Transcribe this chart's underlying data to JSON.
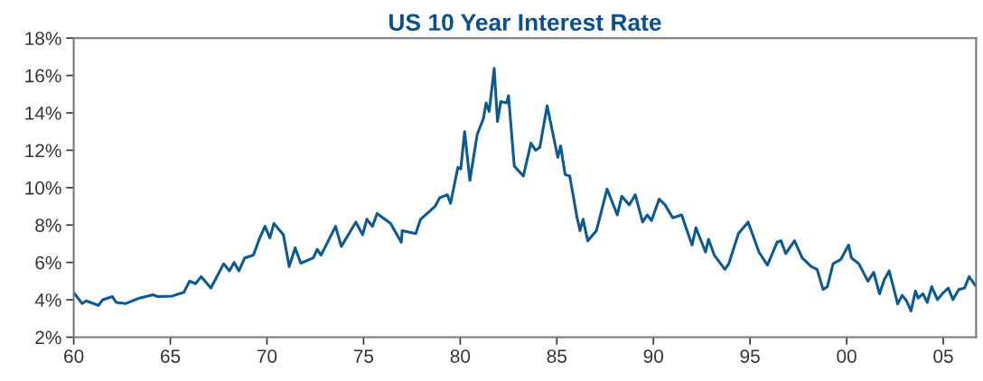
{
  "chart_data": {
    "type": "line",
    "title": "US 10 Year Interest Rate",
    "x": [
      1960.05,
      1960.43,
      1960.65,
      1961.28,
      1961.5,
      1962.0,
      1962.2,
      1962.7,
      1963.4,
      1964.1,
      1964.35,
      1965.1,
      1965.7,
      1966.0,
      1966.3,
      1966.6,
      1967.1,
      1967.76,
      1968.06,
      1968.3,
      1968.55,
      1968.85,
      1969.3,
      1969.6,
      1969.9,
      1970.15,
      1970.36,
      1970.85,
      1971.15,
      1971.46,
      1971.75,
      1972.4,
      1972.6,
      1972.8,
      1973.55,
      1973.85,
      1974.6,
      1974.95,
      1975.17,
      1975.46,
      1975.7,
      1976.4,
      1976.95,
      1977.0,
      1977.7,
      1977.95,
      1978.7,
      1978.95,
      1979.34,
      1979.5,
      1979.88,
      1980.03,
      1980.23,
      1980.5,
      1980.88,
      1981.2,
      1981.34,
      1981.5,
      1981.76,
      1981.93,
      1982.1,
      1982.4,
      1982.5,
      1982.8,
      1983.27,
      1983.66,
      1983.9,
      1984.12,
      1984.5,
      1985.05,
      1985.2,
      1985.43,
      1985.67,
      1986.05,
      1986.2,
      1986.36,
      1986.6,
      1987.05,
      1987.28,
      1987.6,
      1988.13,
      1988.36,
      1988.75,
      1989.06,
      1989.44,
      1989.68,
      1989.9,
      1990.3,
      1990.6,
      1991.0,
      1991.46,
      1992.0,
      1992.2,
      1992.7,
      1992.85,
      1993.15,
      1993.7,
      1993.9,
      1994.4,
      1994.9,
      1995.2,
      1995.46,
      1995.9,
      1996.4,
      1996.6,
      1996.85,
      1997.3,
      1997.7,
      1998.16,
      1998.47,
      1998.78,
      1999.0,
      1999.3,
      1999.7,
      2000.1,
      2000.25,
      2000.63,
      2001.1,
      2001.4,
      2001.7,
      2001.95,
      2002.2,
      2002.64,
      2002.87,
      2003.1,
      2003.33,
      2003.56,
      2003.7,
      2003.95,
      2004.17,
      2004.4,
      2004.7,
      2004.95,
      2005.26,
      2005.5,
      2005.8,
      2006.1,
      2006.34,
      2006.65
    ],
    "series": [
      {
        "color": "#0b5a94",
        "values": [
          4.32,
          3.8,
          3.94,
          3.7,
          4.0,
          4.17,
          3.86,
          3.8,
          4.09,
          4.27,
          4.17,
          4.2,
          4.4,
          5.0,
          4.86,
          5.24,
          4.63,
          5.93,
          5.55,
          6.0,
          5.55,
          6.24,
          6.39,
          7.24,
          7.93,
          7.31,
          8.08,
          7.48,
          5.78,
          6.78,
          5.96,
          6.24,
          6.7,
          6.39,
          7.93,
          6.85,
          8.16,
          7.48,
          8.31,
          7.93,
          8.62,
          8.08,
          7.08,
          7.7,
          7.54,
          8.31,
          9.0,
          9.47,
          9.62,
          9.16,
          11.08,
          11.0,
          13.0,
          10.39,
          12.84,
          13.69,
          14.53,
          14.07,
          16.38,
          13.54,
          14.6,
          14.53,
          14.92,
          11.15,
          10.62,
          12.38,
          12.0,
          12.15,
          14.38,
          11.62,
          12.23,
          10.7,
          10.62,
          8.39,
          7.7,
          8.31,
          7.16,
          7.7,
          8.62,
          9.93,
          8.54,
          9.54,
          9.08,
          9.62,
          8.16,
          8.54,
          8.24,
          9.39,
          9.08,
          8.39,
          8.54,
          6.93,
          7.85,
          6.55,
          7.24,
          6.39,
          5.63,
          5.93,
          7.54,
          8.16,
          7.31,
          6.55,
          5.86,
          7.08,
          7.16,
          6.47,
          7.16,
          6.24,
          5.78,
          5.63,
          4.55,
          4.7,
          5.93,
          6.16,
          6.93,
          6.24,
          5.93,
          5.0,
          5.47,
          4.32,
          5.08,
          5.55,
          3.78,
          4.24,
          3.94,
          3.4,
          4.47,
          4.09,
          4.32,
          3.86,
          4.7,
          4.01,
          4.32,
          4.63,
          4.01,
          4.55,
          4.63,
          5.24,
          4.78
        ]
      }
    ],
    "xlim": [
      1960,
      2006.7
    ],
    "xticks": [
      {
        "value": 1960,
        "label": "60"
      },
      {
        "value": 1965,
        "label": "65"
      },
      {
        "value": 1970,
        "label": "70"
      },
      {
        "value": 1975,
        "label": "75"
      },
      {
        "value": 1980,
        "label": "80"
      },
      {
        "value": 1985,
        "label": "85"
      },
      {
        "value": 1990,
        "label": "90"
      },
      {
        "value": 1995,
        "label": "95"
      },
      {
        "value": 2000,
        "label": "00"
      },
      {
        "value": 2005,
        "label": "05"
      }
    ],
    "ylim": [
      2,
      18
    ],
    "yticks": [
      {
        "value": 2,
        "label": "2%"
      },
      {
        "value": 4,
        "label": "4%"
      },
      {
        "value": 6,
        "label": "6%"
      },
      {
        "value": 8,
        "label": "8%"
      },
      {
        "value": 10,
        "label": "10%"
      },
      {
        "value": 12,
        "label": "12%"
      },
      {
        "value": 14,
        "label": "14%"
      },
      {
        "value": 16,
        "label": "16%"
      },
      {
        "value": 18,
        "label": "18%"
      }
    ],
    "grid": false,
    "legend": false,
    "marker": "none",
    "line_style": "solid"
  }
}
